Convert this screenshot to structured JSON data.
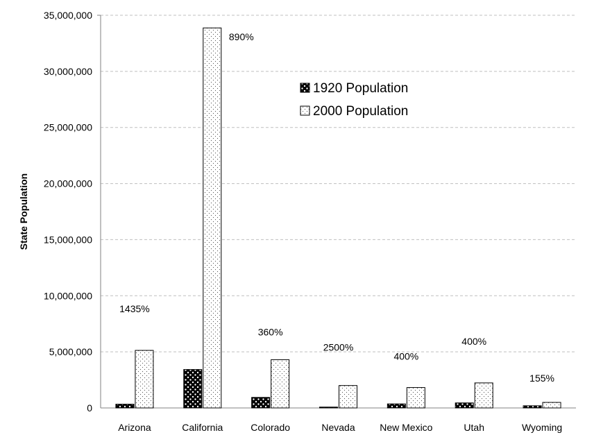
{
  "chart_data": {
    "type": "bar",
    "title": "",
    "xlabel": "",
    "ylabel": "State Population",
    "ylim": [
      0,
      35000000
    ],
    "yticks": [
      0,
      5000000,
      10000000,
      15000000,
      20000000,
      25000000,
      30000000,
      35000000
    ],
    "ytick_labels": [
      "0",
      "5,000,000",
      "10,000,000",
      "15,000,000",
      "20,000,000",
      "25,000,000",
      "30,000,000",
      "35,000,000"
    ],
    "grid": "horizontal dashed",
    "legend_position": "top-center",
    "categories": [
      "Arizona",
      "California",
      "Colorado",
      "Nevada",
      "New Mexico",
      "Utah",
      "Wyoming"
    ],
    "series": [
      {
        "name": "1920 Population",
        "pattern": "dense-dots-black",
        "values": [
          334162,
          3426861,
          939629,
          77407,
          360350,
          449396,
          194402
        ]
      },
      {
        "name": "2000 Population",
        "pattern": "sparse-dots-white",
        "values": [
          5130632,
          33871648,
          4301261,
          1998257,
          1819046,
          2233169,
          493782
        ]
      }
    ],
    "annotations": [
      {
        "category": "Arizona",
        "text": "1435%"
      },
      {
        "category": "California",
        "text": "890%"
      },
      {
        "category": "Colorado",
        "text": "360%"
      },
      {
        "category": "Nevada",
        "text": "2500%"
      },
      {
        "category": "New Mexico",
        "text": "400%"
      },
      {
        "category": "Utah",
        "text": "400%"
      },
      {
        "category": "Wyoming",
        "text": "155%"
      }
    ]
  },
  "colors": {
    "gridline": "#bfbfbf",
    "axis": "#808080",
    "bar_outline": "#000000",
    "dense_fill": "#000000",
    "sparse_fill": "#ffffff"
  }
}
